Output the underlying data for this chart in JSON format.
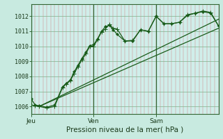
{
  "title": "",
  "xlabel": "Pression niveau de la mer( hPa )",
  "bg_color": "#c8eae0",
  "plot_bg_color": "#d0eeea",
  "grid_color_h": "#88bb99",
  "grid_color_v": "#cc8888",
  "line_color": "#1a5c1a",
  "sep_color": "#336633",
  "ylim": [
    1005.5,
    1012.8
  ],
  "xlim": [
    0,
    48
  ],
  "yticks": [
    1006,
    1007,
    1008,
    1009,
    1010,
    1011,
    1012
  ],
  "day_positions": [
    0,
    16,
    32
  ],
  "day_labels": [
    "Jeu",
    "Ven",
    "Sam"
  ],
  "series1_x": [
    0,
    1,
    2,
    4,
    6,
    8,
    9,
    10,
    11,
    12,
    13,
    14,
    15,
    16,
    17,
    18,
    19,
    20,
    21,
    22,
    24,
    26,
    28,
    30,
    32,
    34,
    36,
    38,
    40,
    42,
    44,
    46,
    48
  ],
  "series1_y": [
    1006.5,
    1006.1,
    1006.05,
    1005.95,
    1006.1,
    1007.3,
    1007.55,
    1007.75,
    1008.3,
    1008.75,
    1009.2,
    1009.6,
    1010.05,
    1010.1,
    1010.5,
    1011.0,
    1011.3,
    1011.4,
    1011.1,
    1010.8,
    1010.35,
    1010.35,
    1011.1,
    1011.0,
    1012.0,
    1011.5,
    1011.5,
    1011.6,
    1012.05,
    1012.2,
    1012.3,
    1012.2,
    1011.35
  ],
  "series2_x": [
    0,
    1,
    2,
    4,
    6,
    8,
    9,
    10,
    11,
    12,
    13,
    14,
    15,
    16,
    17,
    18,
    19,
    20,
    21,
    22,
    24,
    26,
    28,
    30,
    32,
    34,
    36,
    38,
    40,
    42,
    44,
    46,
    48
  ],
  "series2_y": [
    1006.1,
    1006.05,
    1006.0,
    1005.9,
    1006.0,
    1007.25,
    1007.5,
    1007.7,
    1008.2,
    1008.65,
    1009.1,
    1009.5,
    1010.0,
    1010.0,
    1010.45,
    1010.95,
    1011.15,
    1011.45,
    1011.2,
    1011.15,
    1010.35,
    1010.4,
    1011.1,
    1011.0,
    1012.0,
    1011.5,
    1011.5,
    1011.6,
    1012.1,
    1012.2,
    1012.35,
    1012.25,
    1011.35
  ],
  "trend1_x": [
    2,
    48
  ],
  "trend1_y": [
    1006.0,
    1011.2
  ],
  "trend2_x": [
    2,
    48
  ],
  "trend2_y": [
    1006.0,
    1011.8
  ],
  "marker_size": 2.5,
  "ytick_fontsize": 6.0,
  "xtick_fontsize": 6.5,
  "xlabel_fontsize": 7.5
}
